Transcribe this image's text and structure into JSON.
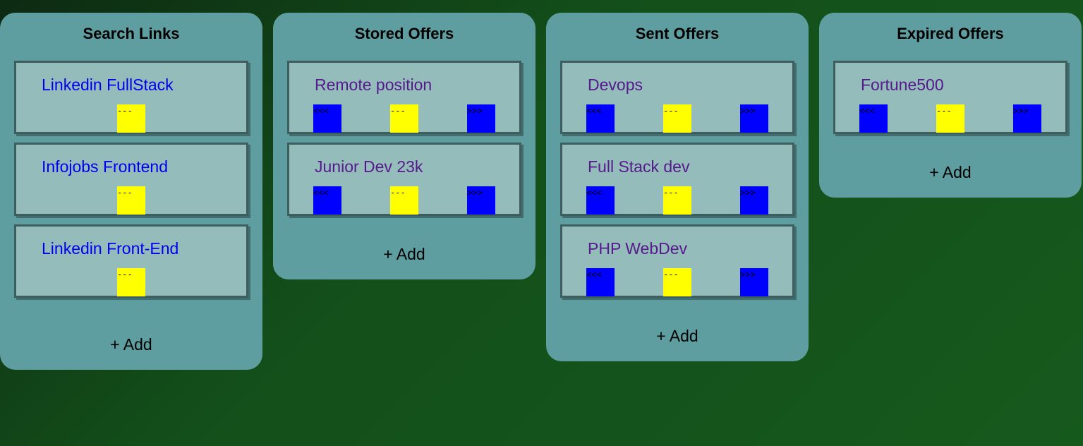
{
  "columns": [
    {
      "title": "Search Links",
      "add_label": "+ Add",
      "cards": [
        {
          "title": "Linkedin FullStack",
          "mid_label": "---"
        },
        {
          "title": "Infojobs Frontend",
          "mid_label": "---"
        },
        {
          "title": "Linkedin Front-End",
          "mid_label": "---"
        }
      ]
    },
    {
      "title": "Stored Offers",
      "add_label": "+ Add",
      "cards": [
        {
          "title": "Remote position",
          "prev_label": "<<<",
          "mid_label": "---",
          "next_label": ">>>"
        },
        {
          "title": "Junior Dev 23k",
          "prev_label": "<<<",
          "mid_label": "---",
          "next_label": ">>>"
        }
      ]
    },
    {
      "title": "Sent Offers",
      "add_label": "+ Add",
      "cards": [
        {
          "title": "Devops",
          "prev_label": "<<<",
          "mid_label": "---",
          "next_label": ">>>"
        },
        {
          "title": "Full Stack dev",
          "prev_label": "<<<",
          "mid_label": "---",
          "next_label": ">>>"
        },
        {
          "title": "PHP WebDev",
          "prev_label": "<<<",
          "mid_label": "---",
          "next_label": ">>>"
        }
      ]
    },
    {
      "title": "Expired Offers",
      "add_label": "+ Add",
      "cards": [
        {
          "title": "Fortune500",
          "prev_label": "<<<",
          "mid_label": "---",
          "next_label": ">>>"
        }
      ]
    }
  ],
  "colors": {
    "background_dark": "#0d2a12",
    "background_green": "#16591d",
    "column_bg": "#5f9ea0",
    "card_bg": "#94bcbb",
    "card_border": "#3e5e5e",
    "link_color": "#0000ee",
    "visited_link_color": "#551a8b",
    "move_button": "#0000ff",
    "mid_button": "#ffff00"
  }
}
